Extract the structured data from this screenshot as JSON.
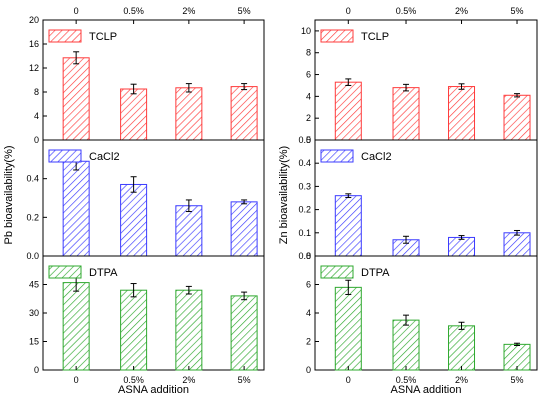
{
  "chart_data": {
    "type": "bar",
    "categories": [
      "0",
      "0.5%",
      "2%",
      "5%"
    ],
    "xlabel": "ASNA addition",
    "columns": [
      {
        "ylabel": "Pb bioavailability(%)",
        "panels": [
          {
            "legend": "TCLP",
            "color": "#ff3b3b",
            "ylim": [
              0,
              20
            ],
            "yticks": [
              "0",
              "4",
              "8",
              "12",
              "16",
              "20"
            ],
            "tick_values": [
              0,
              4,
              8,
              12,
              16,
              20
            ],
            "values": [
              13.7,
              8.5,
              8.7,
              8.9
            ],
            "errors": [
              1.0,
              0.8,
              0.7,
              0.5
            ]
          },
          {
            "legend": "CaCl2",
            "color": "#3b3bff",
            "ylim": [
              0,
              0.6
            ],
            "yticks": [
              "0.0",
              "0.2",
              "0.4"
            ],
            "tick_values": [
              0,
              0.2,
              0.4
            ],
            "values": [
              0.49,
              0.37,
              0.26,
              0.28
            ],
            "errors": [
              0.045,
              0.04,
              0.03,
              0.01
            ]
          },
          {
            "legend": "DTPA",
            "color": "#2ea82e",
            "ylim": [
              0,
              60
            ],
            "yticks": [
              "0",
              "15",
              "30",
              "45"
            ],
            "tick_values": [
              0,
              15,
              30,
              45
            ],
            "values": [
              46,
              42,
              42,
              39
            ],
            "errors": [
              4.5,
              3.5,
              2.0,
              2.0
            ]
          }
        ]
      },
      {
        "ylabel": "Zn bioavailability(%)",
        "panels": [
          {
            "legend": "TCLP",
            "color": "#ff3b3b",
            "ylim": [
              0,
              11
            ],
            "yticks": [
              "0",
              "2",
              "4",
              "6",
              "8",
              "10"
            ],
            "tick_values": [
              0,
              2,
              4,
              6,
              8,
              10
            ],
            "values": [
              5.3,
              4.8,
              4.9,
              4.1
            ],
            "errors": [
              0.3,
              0.3,
              0.25,
              0.15
            ]
          },
          {
            "legend": "CaCl2",
            "color": "#3b3bff",
            "ylim": [
              0,
              0.5
            ],
            "yticks": [
              "0.0",
              "0.1",
              "0.2",
              "0.3",
              "0.4",
              "0.5"
            ],
            "tick_values": [
              0,
              0.1,
              0.2,
              0.3,
              0.4,
              0.5
            ],
            "values": [
              0.26,
              0.07,
              0.08,
              0.1
            ],
            "errors": [
              0.008,
              0.015,
              0.008,
              0.01
            ]
          },
          {
            "legend": "DTPA",
            "color": "#2ea82e",
            "ylim": [
              0,
              8
            ],
            "yticks": [
              "0",
              "2",
              "4",
              "6",
              "8"
            ],
            "tick_values": [
              0,
              2,
              4,
              6,
              8
            ],
            "values": [
              5.8,
              3.5,
              3.1,
              1.8
            ],
            "errors": [
              0.5,
              0.35,
              0.25,
              0.08
            ]
          }
        ]
      }
    ]
  }
}
